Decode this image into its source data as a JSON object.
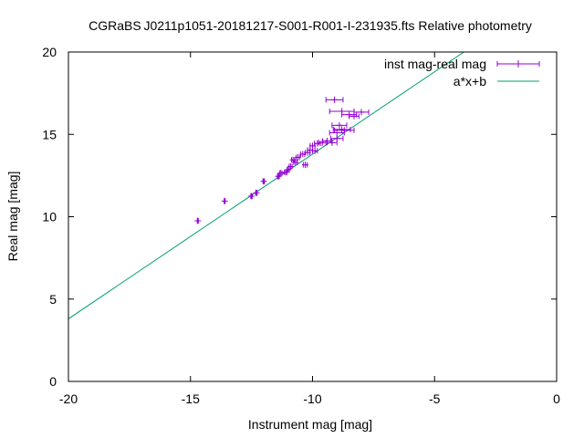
{
  "chart_data": {
    "type": "scatter",
    "title": "CGRaBS J0211p1051-20181217-S001-R001-I-231935.fts Relative photometry",
    "xlabel": "Instrument mag [mag]",
    "ylabel": "Real mag [mag]",
    "xlim": [
      -20,
      0
    ],
    "ylim": [
      0,
      20
    ],
    "xticks": [
      "-20",
      "-15",
      "-10",
      "-5",
      "0"
    ],
    "yticks": [
      "0",
      "5",
      "10",
      "15",
      "20"
    ],
    "grid": false,
    "legend_position": "top-right",
    "colors": {
      "points": "#9400d3",
      "fit": "#009e73"
    },
    "series": [
      {
        "name": "inst mag-real mag",
        "style": "points with x error bars",
        "points": [
          {
            "x": -14.7,
            "y": 9.75,
            "xerr": 0.02
          },
          {
            "x": -13.6,
            "y": 10.95,
            "xerr": 0.02
          },
          {
            "x": -12.5,
            "y": 11.25,
            "xerr": 0.03
          },
          {
            "x": -12.3,
            "y": 11.45,
            "xerr": 0.03
          },
          {
            "x": -12.0,
            "y": 12.15,
            "xerr": 0.03
          },
          {
            "x": -11.4,
            "y": 12.45,
            "xerr": 0.04
          },
          {
            "x": -11.3,
            "y": 12.65,
            "xerr": 0.05
          },
          {
            "x": -11.1,
            "y": 12.7,
            "xerr": 0.05
          },
          {
            "x": -11.0,
            "y": 12.85,
            "xerr": 0.05
          },
          {
            "x": -10.9,
            "y": 13.05,
            "xerr": 0.06
          },
          {
            "x": -10.8,
            "y": 13.45,
            "xerr": 0.06
          },
          {
            "x": -10.7,
            "y": 13.3,
            "xerr": 0.07
          },
          {
            "x": -10.6,
            "y": 13.6,
            "xerr": 0.07
          },
          {
            "x": -10.3,
            "y": 13.15,
            "xerr": 0.08
          },
          {
            "x": -10.4,
            "y": 13.8,
            "xerr": 0.08
          },
          {
            "x": -10.2,
            "y": 13.9,
            "xerr": 0.09
          },
          {
            "x": -10.1,
            "y": 14.05,
            "xerr": 0.1
          },
          {
            "x": -10.0,
            "y": 14.3,
            "xerr": 0.1
          },
          {
            "x": -9.9,
            "y": 14.0,
            "xerr": 0.1
          },
          {
            "x": -9.8,
            "y": 14.45,
            "xerr": 0.12
          },
          {
            "x": -9.6,
            "y": 14.5,
            "xerr": 0.15
          },
          {
            "x": -9.4,
            "y": 14.6,
            "xerr": 0.18
          },
          {
            "x": -9.2,
            "y": 14.5,
            "xerr": 0.2
          },
          {
            "x": -9.0,
            "y": 14.75,
            "xerr": 0.25
          },
          {
            "x": -9.0,
            "y": 15.1,
            "xerr": 0.3
          },
          {
            "x": -8.8,
            "y": 15.3,
            "xerr": 0.35
          },
          {
            "x": -8.9,
            "y": 15.55,
            "xerr": 0.3
          },
          {
            "x": -8.7,
            "y": 15.25,
            "xerr": 0.4
          },
          {
            "x": -8.5,
            "y": 16.2,
            "xerr": 0.3
          },
          {
            "x": -8.3,
            "y": 16.1,
            "xerr": 0.2
          },
          {
            "x": -8.0,
            "y": 16.35,
            "xerr": 0.3
          },
          {
            "x": -8.8,
            "y": 16.4,
            "xerr": 0.5
          },
          {
            "x": -9.1,
            "y": 17.1,
            "xerr": 0.35
          }
        ]
      },
      {
        "name": "a*x+b",
        "style": "line",
        "fit": {
          "a": 1.0,
          "b": 23.8
        }
      }
    ]
  }
}
